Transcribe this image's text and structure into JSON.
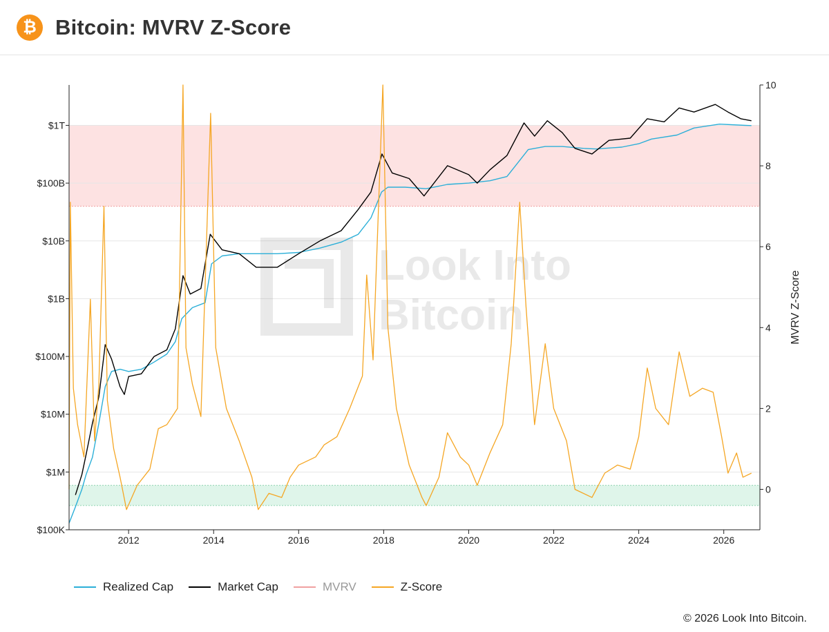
{
  "header": {
    "title": "Bitcoin: MVRV Z-Score",
    "logo_glyph": "₿",
    "logo_color": "#f7931a"
  },
  "watermark": {
    "line1": "Look Into",
    "line2": "Bitcoin"
  },
  "copyright": "© 2026 Look Into Bitcoin.",
  "legend": [
    {
      "name": "Realized Cap",
      "color": "#2bafd8"
    },
    {
      "name": "Market Cap",
      "color": "#000000"
    },
    {
      "name": "MVRV",
      "color": "#f0a0a0",
      "muted": true
    },
    {
      "name": "Z-Score",
      "color": "#f5a623"
    }
  ],
  "chart_data": {
    "type": "line",
    "x_range": [
      2010.6,
      2026.85
    ],
    "x_ticks": [
      {
        "value": 2012,
        "label": "2012"
      },
      {
        "value": 2014,
        "label": "2014"
      },
      {
        "value": 2016,
        "label": "2016"
      },
      {
        "value": 2018,
        "label": "2018"
      },
      {
        "value": 2020,
        "label": "2020"
      },
      {
        "value": 2022,
        "label": "2022"
      },
      {
        "value": 2024,
        "label": "2024"
      },
      {
        "value": 2026,
        "label": "2026"
      }
    ],
    "y_left": {
      "scale": "log",
      "range": [
        100000,
        5000000000000
      ],
      "ticks": [
        {
          "value": 100000,
          "label": "$100K"
        },
        {
          "value": 1000000,
          "label": "$1M"
        },
        {
          "value": 10000000,
          "label": "$10M"
        },
        {
          "value": 100000000,
          "label": "$100M"
        },
        {
          "value": 1000000000,
          "label": "$1B"
        },
        {
          "value": 10000000000,
          "label": "$10B"
        },
        {
          "value": 100000000000,
          "label": "$100B"
        },
        {
          "value": 1000000000000,
          "label": "$1T"
        }
      ]
    },
    "y_right": {
      "label": "MVRV Z-Score",
      "range": [
        -1,
        10
      ],
      "ticks": [
        {
          "value": 0,
          "label": "0"
        },
        {
          "value": 2,
          "label": "2"
        },
        {
          "value": 4,
          "label": "4"
        },
        {
          "value": 6,
          "label": "6"
        },
        {
          "value": 8,
          "label": "8"
        },
        {
          "value": 10,
          "label": "10"
        }
      ]
    },
    "bands": [
      {
        "name": "overvalued-zone",
        "from": 7,
        "to": 9,
        "color": "#fde2e2",
        "border": "#f0a0a0"
      },
      {
        "name": "undervalued-zone",
        "from": -0.4,
        "to": 0.1,
        "color": "#dff5ea",
        "border": "#8fd3b0"
      }
    ],
    "series": [
      {
        "name": "Realized Cap",
        "axis": "left",
        "color": "#2bafd8",
        "points": [
          [
            2010.6,
            130000
          ],
          [
            2010.75,
            250000
          ],
          [
            2010.9,
            500000
          ],
          [
            2011.0,
            900000
          ],
          [
            2011.15,
            1800000
          ],
          [
            2011.3,
            7000000
          ],
          [
            2011.45,
            30000000
          ],
          [
            2011.6,
            55000000
          ],
          [
            2011.8,
            60000000
          ],
          [
            2012.0,
            55000000
          ],
          [
            2012.3,
            60000000
          ],
          [
            2012.6,
            80000000
          ],
          [
            2012.9,
            110000000
          ],
          [
            2013.1,
            180000000
          ],
          [
            2013.25,
            450000000
          ],
          [
            2013.5,
            700000000
          ],
          [
            2013.8,
            850000000
          ],
          [
            2013.95,
            4000000000
          ],
          [
            2014.2,
            5500000000
          ],
          [
            2014.6,
            6000000000
          ],
          [
            2015.0,
            6000000000
          ],
          [
            2015.5,
            6000000000
          ],
          [
            2016.0,
            6300000000
          ],
          [
            2016.5,
            7500000000
          ],
          [
            2017.0,
            9500000000
          ],
          [
            2017.4,
            13000000000
          ],
          [
            2017.7,
            25000000000
          ],
          [
            2017.95,
            70000000000
          ],
          [
            2018.1,
            85000000000
          ],
          [
            2018.5,
            85000000000
          ],
          [
            2019.0,
            80000000000
          ],
          [
            2019.5,
            95000000000
          ],
          [
            2020.0,
            100000000000
          ],
          [
            2020.5,
            110000000000
          ],
          [
            2020.9,
            130000000000
          ],
          [
            2021.1,
            200000000000
          ],
          [
            2021.4,
            380000000000
          ],
          [
            2021.8,
            430000000000
          ],
          [
            2022.2,
            430000000000
          ],
          [
            2022.7,
            400000000000
          ],
          [
            2023.0,
            390000000000
          ],
          [
            2023.6,
            420000000000
          ],
          [
            2024.0,
            480000000000
          ],
          [
            2024.3,
            580000000000
          ],
          [
            2024.9,
            680000000000
          ],
          [
            2025.3,
            900000000000
          ],
          [
            2025.9,
            1050000000000
          ],
          [
            2026.5,
            1000000000000
          ],
          [
            2026.65,
            990000000000
          ]
        ]
      },
      {
        "name": "Market Cap",
        "axis": "left",
        "color": "#000000",
        "points": [
          [
            2010.75,
            400000
          ],
          [
            2010.9,
            900000
          ],
          [
            2011.0,
            2000000
          ],
          [
            2011.15,
            7000000
          ],
          [
            2011.3,
            20000000
          ],
          [
            2011.45,
            160000000
          ],
          [
            2011.6,
            90000000
          ],
          [
            2011.8,
            30000000
          ],
          [
            2011.9,
            22000000
          ],
          [
            2012.0,
            45000000
          ],
          [
            2012.3,
            50000000
          ],
          [
            2012.6,
            100000000
          ],
          [
            2012.9,
            130000000
          ],
          [
            2013.1,
            300000000
          ],
          [
            2013.28,
            2500000000
          ],
          [
            2013.45,
            1200000000
          ],
          [
            2013.7,
            1500000000
          ],
          [
            2013.92,
            13000000000
          ],
          [
            2014.2,
            7000000000
          ],
          [
            2014.6,
            6000000000
          ],
          [
            2015.0,
            3500000000
          ],
          [
            2015.5,
            3500000000
          ],
          [
            2016.0,
            6000000000
          ],
          [
            2016.5,
            10000000000
          ],
          [
            2017.0,
            15000000000
          ],
          [
            2017.4,
            35000000000
          ],
          [
            2017.7,
            70000000000
          ],
          [
            2017.96,
            320000000000
          ],
          [
            2018.2,
            150000000000
          ],
          [
            2018.6,
            120000000000
          ],
          [
            2018.95,
            60000000000
          ],
          [
            2019.5,
            200000000000
          ],
          [
            2020.0,
            140000000000
          ],
          [
            2020.2,
            100000000000
          ],
          [
            2020.5,
            170000000000
          ],
          [
            2020.9,
            300000000000
          ],
          [
            2021.3,
            1100000000000
          ],
          [
            2021.55,
            650000000000
          ],
          [
            2021.85,
            1200000000000
          ],
          [
            2022.2,
            750000000000
          ],
          [
            2022.5,
            400000000000
          ],
          [
            2022.9,
            320000000000
          ],
          [
            2023.3,
            550000000000
          ],
          [
            2023.8,
            600000000000
          ],
          [
            2024.2,
            1300000000000
          ],
          [
            2024.6,
            1150000000000
          ],
          [
            2024.95,
            2000000000000
          ],
          [
            2025.3,
            1700000000000
          ],
          [
            2025.8,
            2300000000000
          ],
          [
            2026.1,
            1700000000000
          ],
          [
            2026.4,
            1300000000000
          ],
          [
            2026.65,
            1200000000000
          ]
        ]
      },
      {
        "name": "Z-Score",
        "axis": "right",
        "color": "#f5a623",
        "points": [
          [
            2010.6,
            0.0
          ],
          [
            2010.63,
            7.1
          ],
          [
            2010.7,
            2.5
          ],
          [
            2010.8,
            1.6
          ],
          [
            2010.95,
            0.8
          ],
          [
            2011.1,
            4.7
          ],
          [
            2011.2,
            1.2
          ],
          [
            2011.3,
            2.6
          ],
          [
            2011.42,
            7.0
          ],
          [
            2011.5,
            2.2
          ],
          [
            2011.65,
            1.0
          ],
          [
            2011.8,
            0.3
          ],
          [
            2011.95,
            -0.5
          ],
          [
            2012.2,
            0.1
          ],
          [
            2012.5,
            0.5
          ],
          [
            2012.7,
            1.5
          ],
          [
            2012.9,
            1.6
          ],
          [
            2013.15,
            2.0
          ],
          [
            2013.28,
            10.0
          ],
          [
            2013.35,
            3.5
          ],
          [
            2013.5,
            2.6
          ],
          [
            2013.7,
            1.8
          ],
          [
            2013.93,
            9.3
          ],
          [
            2014.05,
            3.5
          ],
          [
            2014.3,
            2.0
          ],
          [
            2014.6,
            1.2
          ],
          [
            2014.9,
            0.3
          ],
          [
            2015.05,
            -0.5
          ],
          [
            2015.3,
            -0.1
          ],
          [
            2015.6,
            -0.2
          ],
          [
            2015.8,
            0.3
          ],
          [
            2016.0,
            0.6
          ],
          [
            2016.4,
            0.8
          ],
          [
            2016.6,
            1.1
          ],
          [
            2016.9,
            1.3
          ],
          [
            2017.2,
            2.0
          ],
          [
            2017.5,
            2.8
          ],
          [
            2017.6,
            5.3
          ],
          [
            2017.75,
            3.2
          ],
          [
            2017.98,
            10.0
          ],
          [
            2018.1,
            4.0
          ],
          [
            2018.3,
            2.0
          ],
          [
            2018.6,
            0.6
          ],
          [
            2018.9,
            -0.2
          ],
          [
            2019.0,
            -0.4
          ],
          [
            2019.3,
            0.3
          ],
          [
            2019.5,
            1.4
          ],
          [
            2019.8,
            0.8
          ],
          [
            2020.0,
            0.6
          ],
          [
            2020.2,
            0.1
          ],
          [
            2020.5,
            0.9
          ],
          [
            2020.8,
            1.6
          ],
          [
            2021.0,
            3.6
          ],
          [
            2021.2,
            7.1
          ],
          [
            2021.35,
            4.5
          ],
          [
            2021.55,
            1.6
          ],
          [
            2021.8,
            3.6
          ],
          [
            2022.0,
            2.0
          ],
          [
            2022.3,
            1.2
          ],
          [
            2022.5,
            0.0
          ],
          [
            2022.9,
            -0.2
          ],
          [
            2023.2,
            0.4
          ],
          [
            2023.5,
            0.6
          ],
          [
            2023.8,
            0.5
          ],
          [
            2024.0,
            1.3
          ],
          [
            2024.2,
            3.0
          ],
          [
            2024.4,
            2.0
          ],
          [
            2024.7,
            1.6
          ],
          [
            2024.95,
            3.4
          ],
          [
            2025.2,
            2.3
          ],
          [
            2025.5,
            2.5
          ],
          [
            2025.75,
            2.4
          ],
          [
            2025.95,
            1.3
          ],
          [
            2026.1,
            0.4
          ],
          [
            2026.3,
            0.9
          ],
          [
            2026.45,
            0.3
          ],
          [
            2026.65,
            0.4
          ]
        ]
      }
    ]
  }
}
